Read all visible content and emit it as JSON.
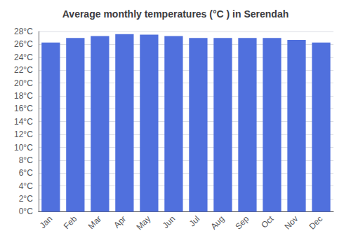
{
  "chart_data": {
    "type": "bar",
    "title": "Average monthly temperatures (°C ) in Serendah",
    "categories": [
      "Jan",
      "Feb",
      "Mar",
      "Apr",
      "May",
      "Jun",
      "Jul",
      "Aug",
      "Sep",
      "Oct",
      "Nov",
      "Dec"
    ],
    "values": [
      26.3,
      27.0,
      27.3,
      27.6,
      27.5,
      27.3,
      27.0,
      27.0,
      27.0,
      27.0,
      26.7,
      26.3
    ],
    "ylim": [
      0,
      28
    ],
    "yticks": [
      {
        "value": 0,
        "label": "0°C"
      },
      {
        "value": 2,
        "label": "2°C"
      },
      {
        "value": 4,
        "label": "4°C"
      },
      {
        "value": 6,
        "label": "6°C"
      },
      {
        "value": 8,
        "label": "8°C"
      },
      {
        "value": 10,
        "label": "10°C"
      },
      {
        "value": 12,
        "label": "12°C"
      },
      {
        "value": 14,
        "label": "14°C"
      },
      {
        "value": 16,
        "label": "16°C"
      },
      {
        "value": 18,
        "label": "18°C"
      },
      {
        "value": 20,
        "label": "20°C"
      },
      {
        "value": 22,
        "label": "22°C"
      },
      {
        "value": 24,
        "label": "24°C"
      },
      {
        "value": 26,
        "label": "26°C"
      },
      {
        "value": 28,
        "label": "28°C"
      }
    ],
    "grid": true
  }
}
